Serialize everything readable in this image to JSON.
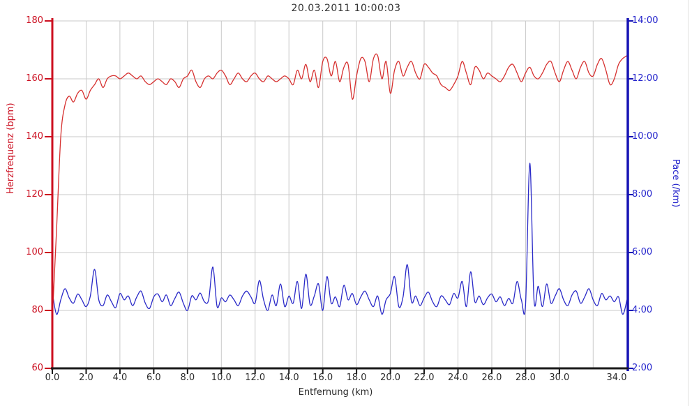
{
  "title": "20.03.2011 10:00:03",
  "colors": {
    "hr_line": "#d6302f",
    "hr_axis": "#cc0f1f",
    "hr_text": "#cc1122",
    "pace_line": "#2a2ac8",
    "pace_axis": "#1512b4",
    "pace_text": "#2424cc",
    "grid": "#c9c9c9",
    "bottom_axis": "#1a1a1a",
    "title_text": "#333333",
    "panel_border": "#e2e2e0"
  },
  "axes": {
    "x": {
      "label": "Entfernung (km)",
      "min": 0,
      "max": 34.05,
      "grid_step_km": 2,
      "tick_values": [
        0,
        2,
        4,
        6,
        8,
        10,
        12,
        14,
        16,
        18,
        20,
        22,
        24,
        26,
        28,
        30,
        34
      ],
      "tick_labels": [
        "0.0",
        "2.0",
        "4.0",
        "6.0",
        "8.0",
        "10.0",
        "12.0",
        "14.0",
        "16.0",
        "18.0",
        "20.0",
        "22.0",
        "24.0",
        "26.0",
        "28.0",
        "30.0",
        "34.0"
      ]
    },
    "y_left": {
      "label": "Herzfrequenz (bpm)",
      "min": 60,
      "max": 180,
      "tick_values": [
        180,
        160,
        140,
        120,
        100,
        80,
        60
      ],
      "tick_labels": [
        "180",
        "160",
        "140",
        "120",
        "100",
        "80",
        "60"
      ]
    },
    "y_right": {
      "label": "Pace (/km)",
      "min_sec": 120,
      "max_sec": 840,
      "tick_values_sec": [
        840,
        720,
        600,
        480,
        360,
        240,
        120
      ],
      "tick_labels": [
        "14:00",
        "12:00",
        "10:00",
        "8:00",
        "6:00",
        "4:00",
        "2:00"
      ]
    }
  },
  "chart_data": {
    "type": "line",
    "title": "20.03.2011 10:00:03",
    "xlabel": "Entfernung (km)",
    "x_start_km": 0,
    "x_step_km": 0.25,
    "xlim": [
      0,
      34.05
    ],
    "ylim_left_bpm": [
      60,
      180
    ],
    "ylim_right_sec_per_km": [
      120,
      840
    ],
    "grid": true,
    "legend": "none",
    "series": [
      {
        "name": "Herzfrequenz (bpm)",
        "axis": "left",
        "unit": "bpm",
        "values": [
          77,
          108,
          140,
          151,
          154,
          152,
          155,
          156,
          153,
          156,
          158,
          160,
          157,
          160,
          161,
          161,
          160,
          161,
          162,
          161,
          160,
          161,
          159,
          158,
          159,
          160,
          159,
          158,
          160,
          159,
          157,
          160,
          161,
          163,
          159,
          157,
          160,
          161,
          160,
          162,
          163,
          161,
          158,
          160,
          162,
          160,
          159,
          161,
          162,
          160,
          159,
          161,
          160,
          159,
          160,
          161,
          160,
          158,
          163,
          160,
          165,
          159,
          163,
          157,
          166,
          167,
          161,
          166,
          159,
          164,
          165,
          153,
          161,
          167,
          166,
          159,
          167,
          168,
          160,
          166,
          155,
          163,
          166,
          161,
          164,
          166,
          162,
          160,
          165,
          164,
          162,
          161,
          158,
          157,
          156,
          158,
          161,
          166,
          162,
          158,
          164,
          163,
          160,
          162,
          161,
          160,
          159,
          161,
          164,
          165,
          162,
          159,
          162,
          164,
          161,
          160,
          162,
          165,
          166,
          162,
          159,
          163,
          166,
          163,
          160,
          164,
          166,
          162,
          161,
          165,
          167,
          163,
          158,
          160,
          165,
          167,
          168
        ]
      },
      {
        "name": "Pace (/km)",
        "axis": "right",
        "unit": "seconds_per_km",
        "values": [
          278,
          232,
          262,
          285,
          266,
          255,
          274,
          262,
          248,
          270,
          325,
          262,
          250,
          272,
          258,
          246,
          275,
          262,
          270,
          250,
          268,
          280,
          255,
          244,
          268,
          274,
          258,
          272,
          250,
          265,
          278,
          255,
          240,
          270,
          262,
          276,
          258,
          262,
          330,
          248,
          266,
          258,
          272,
          262,
          250,
          270,
          280,
          268,
          255,
          302,
          262,
          240,
          272,
          250,
          295,
          248,
          270,
          255,
          300,
          244,
          315,
          252,
          270,
          295,
          240,
          310,
          255,
          268,
          248,
          292,
          262,
          275,
          252,
          268,
          280,
          262,
          248,
          270,
          232,
          262,
          275,
          310,
          248,
          268,
          335,
          258,
          270,
          250,
          266,
          278,
          258,
          248,
          270,
          262,
          252,
          275,
          266,
          300,
          248,
          320,
          258,
          270,
          252,
          266,
          274,
          258,
          268,
          250,
          265,
          255,
          300,
          262,
          252,
          545,
          262,
          290,
          248,
          295,
          255,
          270,
          285,
          262,
          250,
          272,
          280,
          255,
          268,
          285,
          262,
          250,
          275,
          262,
          270,
          258,
          268,
          232,
          262
        ]
      }
    ]
  }
}
